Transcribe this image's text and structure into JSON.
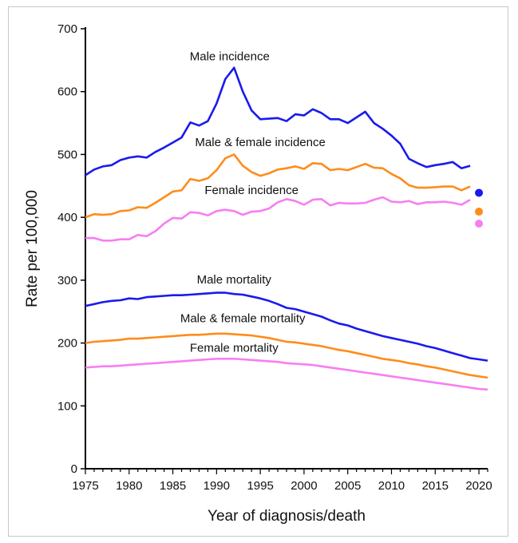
{
  "chart_data": {
    "type": "line",
    "xlabel": "Year of diagnosis/death",
    "ylabel": "Rate per 100,000",
    "xlim": [
      1975,
      2021
    ],
    "ylim": [
      0,
      700
    ],
    "x_ticks": [
      "1975",
      "1980",
      "1985",
      "1990",
      "1995",
      "2000",
      "2005",
      "2010",
      "2015",
      "2020"
    ],
    "y_ticks": [
      "0",
      "100",
      "200",
      "300",
      "400",
      "500",
      "600",
      "700"
    ],
    "grid": false,
    "series": [
      {
        "name": "Male incidence",
        "color": "#1a1aee",
        "x": [
          1975,
          1976,
          1977,
          1978,
          1979,
          1980,
          1981,
          1982,
          1983,
          1984,
          1985,
          1986,
          1987,
          1988,
          1989,
          1990,
          1991,
          1992,
          1993,
          1994,
          1995,
          1996,
          1997,
          1998,
          1999,
          2000,
          2001,
          2002,
          2003,
          2004,
          2005,
          2006,
          2007,
          2008,
          2009,
          2010,
          2011,
          2012,
          2013,
          2014,
          2015,
          2016,
          2017,
          2018,
          2019
        ],
        "y": [
          467,
          476,
          481,
          483,
          491,
          495,
          497,
          495,
          504,
          511,
          519,
          527,
          551,
          546,
          553,
          581,
          620,
          638,
          600,
          570,
          556,
          557,
          558,
          553,
          564,
          562,
          572,
          566,
          556,
          556,
          550,
          559,
          568,
          550,
          541,
          530,
          517,
          493,
          486,
          480,
          483,
          485,
          488,
          478,
          482
        ]
      },
      {
        "name": "Male & female incidence",
        "color": "#ff8c1a",
        "x": [
          1975,
          1976,
          1977,
          1978,
          1979,
          1980,
          1981,
          1982,
          1983,
          1984,
          1985,
          1986,
          1987,
          1988,
          1989,
          1990,
          1991,
          1992,
          1993,
          1994,
          1995,
          1996,
          1997,
          1998,
          1999,
          2000,
          2001,
          2002,
          2003,
          2004,
          2005,
          2006,
          2007,
          2008,
          2009,
          2010,
          2011,
          2012,
          2013,
          2014,
          2015,
          2016,
          2017,
          2018,
          2019
        ],
        "y": [
          400,
          405,
          404,
          405,
          410,
          411,
          416,
          415,
          423,
          432,
          441,
          443,
          461,
          458,
          462,
          475,
          494,
          500,
          482,
          472,
          466,
          470,
          476,
          478,
          481,
          477,
          486,
          485,
          475,
          477,
          475,
          480,
          485,
          479,
          478,
          469,
          462,
          451,
          447,
          447,
          448,
          449,
          449,
          443,
          449
        ]
      },
      {
        "name": "Female incidence",
        "color": "#f77ef2",
        "x": [
          1975,
          1976,
          1977,
          1978,
          1979,
          1980,
          1981,
          1982,
          1983,
          1984,
          1985,
          1986,
          1987,
          1988,
          1989,
          1990,
          1991,
          1992,
          1993,
          1994,
          1995,
          1996,
          1997,
          1998,
          1999,
          2000,
          2001,
          2002,
          2003,
          2004,
          2005,
          2006,
          2007,
          2008,
          2009,
          2010,
          2011,
          2012,
          2013,
          2014,
          2015,
          2016,
          2017,
          2018,
          2019
        ],
        "y": [
          367,
          367,
          363,
          363,
          365,
          365,
          372,
          370,
          378,
          390,
          399,
          398,
          408,
          407,
          403,
          410,
          412,
          410,
          404,
          409,
          410,
          414,
          424,
          429,
          426,
          420,
          428,
          429,
          419,
          423,
          422,
          422,
          423,
          428,
          432,
          425,
          424,
          426,
          421,
          424,
          424,
          425,
          423,
          420,
          428
        ]
      },
      {
        "name": "Male mortality",
        "color": "#1a1aee",
        "x": [
          1975,
          1976,
          1977,
          1978,
          1979,
          1980,
          1981,
          1982,
          1983,
          1984,
          1985,
          1986,
          1987,
          1988,
          1989,
          1990,
          1991,
          1992,
          1993,
          1994,
          1995,
          1996,
          1997,
          1998,
          1999,
          2000,
          2001,
          2002,
          2003,
          2004,
          2005,
          2006,
          2007,
          2008,
          2009,
          2010,
          2011,
          2012,
          2013,
          2014,
          2015,
          2016,
          2017,
          2018,
          2019,
          2020,
          2021
        ],
        "y": [
          259,
          262,
          265,
          267,
          268,
          271,
          270,
          273,
          274,
          275,
          276,
          276,
          277,
          278,
          279,
          280,
          280,
          278,
          277,
          274,
          271,
          267,
          262,
          256,
          254,
          250,
          246,
          242,
          236,
          231,
          228,
          223,
          219,
          215,
          211,
          208,
          205,
          202,
          199,
          195,
          192,
          188,
          184,
          180,
          176,
          174,
          172
        ]
      },
      {
        "name": "Male & female mortality",
        "color": "#ff8c1a",
        "x": [
          1975,
          1976,
          1977,
          1978,
          1979,
          1980,
          1981,
          1982,
          1983,
          1984,
          1985,
          1986,
          1987,
          1988,
          1989,
          1990,
          1991,
          1992,
          1993,
          1994,
          1995,
          1996,
          1997,
          1998,
          1999,
          2000,
          2001,
          2002,
          2003,
          2004,
          2005,
          2006,
          2007,
          2008,
          2009,
          2010,
          2011,
          2012,
          2013,
          2014,
          2015,
          2016,
          2017,
          2018,
          2019,
          2020,
          2021
        ],
        "y": [
          200,
          202,
          203,
          204,
          205,
          207,
          207,
          208,
          209,
          210,
          211,
          212,
          213,
          213,
          214,
          215,
          215,
          214,
          213,
          212,
          210,
          208,
          205,
          202,
          201,
          199,
          197,
          195,
          192,
          189,
          187,
          184,
          181,
          178,
          175,
          173,
          171,
          168,
          166,
          163,
          161,
          158,
          155,
          152,
          149,
          147,
          145
        ]
      },
      {
        "name": "Female mortality",
        "color": "#f77ef2",
        "x": [
          1975,
          1976,
          1977,
          1978,
          1979,
          1980,
          1981,
          1982,
          1983,
          1984,
          1985,
          1986,
          1987,
          1988,
          1989,
          1990,
          1991,
          1992,
          1993,
          1994,
          1995,
          1996,
          1997,
          1998,
          1999,
          2000,
          2001,
          2002,
          2003,
          2004,
          2005,
          2006,
          2007,
          2008,
          2009,
          2010,
          2011,
          2012,
          2013,
          2014,
          2015,
          2016,
          2017,
          2018,
          2019,
          2020,
          2021
        ],
        "y": [
          161,
          162,
          163,
          163,
          164,
          165,
          166,
          167,
          168,
          169,
          170,
          171,
          172,
          173,
          174,
          175,
          175,
          175,
          174,
          173,
          172,
          171,
          170,
          168,
          167,
          166,
          165,
          163,
          161,
          159,
          157,
          155,
          153,
          151,
          149,
          147,
          145,
          143,
          141,
          139,
          137,
          135,
          133,
          131,
          129,
          127,
          126
        ]
      }
    ],
    "points_2020": [
      {
        "x": 2020,
        "y": 439,
        "color": "#1a1aee"
      },
      {
        "x": 2020,
        "y": 409,
        "color": "#ff8c1a"
      },
      {
        "x": 2020,
        "y": 390,
        "color": "#f77ef2"
      }
    ],
    "annotations": [
      {
        "text": "Male incidence",
        "x": 1991.5,
        "y": 650
      },
      {
        "text": "Male & female incidence",
        "x": 1995,
        "y": 513
      },
      {
        "text": "Female incidence",
        "x": 1994,
        "y": 437
      },
      {
        "text": "Male mortality",
        "x": 1992,
        "y": 295
      },
      {
        "text": "Male & female mortality",
        "x": 1993,
        "y": 233
      },
      {
        "text": "Female mortality",
        "x": 1992,
        "y": 186
      }
    ]
  }
}
